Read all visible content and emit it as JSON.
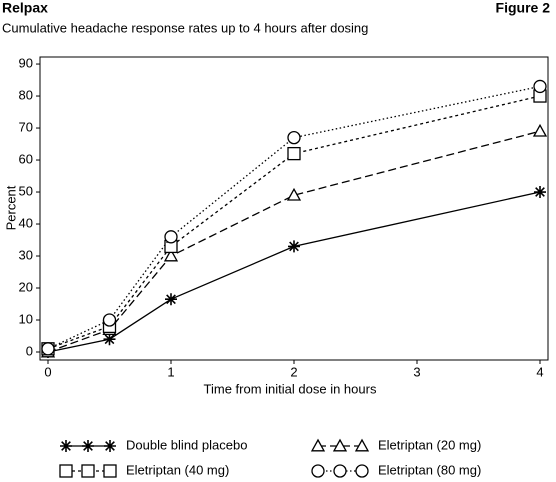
{
  "chart_data": {
    "type": "line",
    "title": "Relpax",
    "figure_label": "Figure 2",
    "subtitle": "Cumulative headache response rates up to 4 hours after dosing",
    "x_label": "Time from initial dose in hours",
    "y_label": "Percent",
    "x": [
      0,
      0.5,
      1,
      2,
      4
    ],
    "xlim": [
      -0.065,
      4.065
    ],
    "xticks": [
      0,
      1,
      2,
      3,
      4
    ],
    "ylim": [
      -2.5,
      92.2
    ],
    "yticks": [
      0,
      10,
      20,
      30,
      40,
      50,
      60,
      70,
      80,
      90
    ],
    "series": [
      {
        "name": "Double blind placebo",
        "color": "#000000",
        "marker": "star",
        "dash": "solid",
        "values": [
          0,
          4,
          16.5,
          33,
          50
        ]
      },
      {
        "name": "Eletriptan (20 mg)",
        "color": "#000000",
        "marker": "triangle",
        "dash": "dashed",
        "values": [
          0,
          7,
          30,
          49,
          69
        ]
      },
      {
        "name": "Eletriptan (40 mg)",
        "color": "#000000",
        "marker": "square",
        "dash": "short-dashed",
        "values": [
          1,
          8,
          33,
          62,
          80
        ]
      },
      {
        "name": "Eletriptan (80 mg)",
        "color": "#000000",
        "marker": "circle",
        "dash": "dotted",
        "values": [
          1,
          10,
          36,
          67,
          83
        ]
      }
    ]
  }
}
